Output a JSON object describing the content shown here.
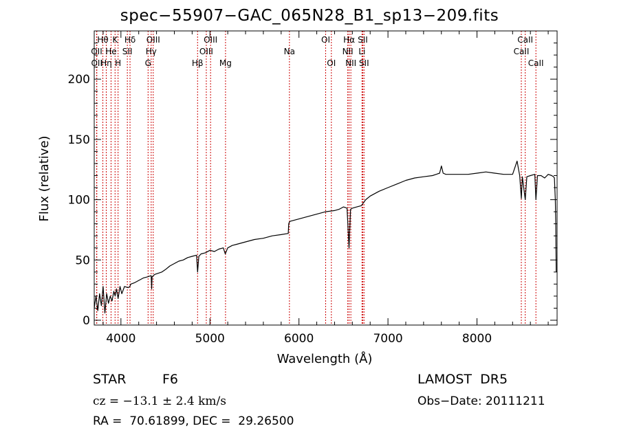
{
  "chart_data": {
    "type": "line",
    "title": "spec−55907−GAC_065N28_B1_sp13−209.fits",
    "xlabel": "Wavelength (Å)",
    "ylabel": "Flux (relative)",
    "xlim": [
      3700,
      8900
    ],
    "ylim": [
      -4,
      240
    ],
    "xticks": [
      4000,
      5000,
      6000,
      7000,
      8000
    ],
    "yticks": [
      0,
      50,
      100,
      150,
      200
    ],
    "grid": false,
    "colors": {
      "spectrum": "#000000",
      "lines": "#cc0000"
    },
    "series": [
      {
        "x": [
          3700,
          3720,
          3740,
          3760,
          3780,
          3800,
          3820,
          3840,
          3860,
          3880,
          3900,
          3920,
          3935,
          3950,
          3968,
          3990,
          4010,
          4040,
          4080,
          4101,
          4110,
          4150,
          4200,
          4250,
          4300,
          4340,
          4345,
          4350,
          4380,
          4420,
          4460,
          4500,
          4550,
          4600,
          4650,
          4700,
          4750,
          4800,
          4850,
          4861,
          4875,
          4900,
          4950,
          5000,
          5050,
          5100,
          5150,
          5172,
          5200,
          5250,
          5300,
          5400,
          5500,
          5600,
          5700,
          5800,
          5880,
          5885,
          5890,
          5900,
          6000,
          6100,
          6200,
          6300,
          6400,
          6450,
          6500,
          6540,
          6563,
          6580,
          6600,
          6650,
          6700,
          6750,
          6800,
          6900,
          7000,
          7100,
          7200,
          7300,
          7400,
          7500,
          7580,
          7600,
          7620,
          7650,
          7700,
          7800,
          7900,
          8000,
          8100,
          8200,
          8300,
          8400,
          8450,
          8480,
          8498,
          8510,
          8542,
          8560,
          8600,
          8650,
          8662,
          8680,
          8720,
          8760,
          8800,
          8840,
          8860,
          8870,
          8880,
          8885,
          8890
        ],
        "y": [
          10,
          20,
          8,
          22,
          12,
          28,
          6,
          22,
          14,
          20,
          16,
          24,
          20,
          26,
          18,
          28,
          22,
          28,
          27,
          28,
          30,
          31,
          33,
          35,
          36,
          37,
          26,
          36,
          38,
          39,
          40,
          42,
          45,
          47,
          49,
          50,
          52,
          53,
          54,
          40,
          53,
          55,
          56,
          58,
          57,
          59,
          60,
          55,
          60,
          62,
          63,
          65,
          67,
          68,
          70,
          71,
          72,
          80,
          81,
          82,
          84,
          86,
          88,
          90,
          91,
          92,
          94,
          93,
          60,
          92,
          93,
          94,
          95,
          100,
          103,
          107,
          110,
          113,
          116,
          118,
          119,
          120,
          122,
          128,
          122,
          121,
          121,
          121,
          121,
          122,
          123,
          122,
          121,
          121,
          132,
          120,
          101,
          119,
          100,
          119,
          120,
          121,
          100,
          120,
          120,
          118,
          121,
          120,
          119,
          118,
          100,
          80,
          40
        ]
      }
    ],
    "line_ids": [
      {
        "label": "Hθ",
        "wavelength": 3797,
        "row": 1
      },
      {
        "label": "OII",
        "wavelength": 3727,
        "row": 2
      },
      {
        "label": "OII",
        "wavelength": 3729,
        "row": 3
      },
      {
        "label": "He",
        "wavelength": 3889,
        "row": 2
      },
      {
        "label": "Hη",
        "wavelength": 3835,
        "row": 3
      },
      {
        "label": "K",
        "wavelength": 3934,
        "row": 1
      },
      {
        "label": "H",
        "wavelength": 3968,
        "row": 3
      },
      {
        "label": "SII",
        "wavelength": 4072,
        "row": 2
      },
      {
        "label": "Hδ",
        "wavelength": 4102,
        "row": 1
      },
      {
        "label": "OIII",
        "wavelength": 4363,
        "row": 1
      },
      {
        "label": "Hγ",
        "wavelength": 4340,
        "row": 2
      },
      {
        "label": "G",
        "wavelength": 4305,
        "row": 3
      },
      {
        "label": "OIII",
        "wavelength": 5007,
        "row": 1
      },
      {
        "label": "OIII",
        "wavelength": 4959,
        "row": 2
      },
      {
        "label": "Hβ",
        "wavelength": 4861,
        "row": 3
      },
      {
        "label": "Mg",
        "wavelength": 5175,
        "row": 3
      },
      {
        "label": "Na",
        "wavelength": 5893,
        "row": 2
      },
      {
        "label": "OI",
        "wavelength": 6300,
        "row": 1
      },
      {
        "label": "OI",
        "wavelength": 6364,
        "row": 3
      },
      {
        "label": "Hα",
        "wavelength": 6563,
        "row": 1
      },
      {
        "label": "NII",
        "wavelength": 6548,
        "row": 2
      },
      {
        "label": "NII",
        "wavelength": 6583,
        "row": 3
      },
      {
        "label": "SII",
        "wavelength": 6717,
        "row": 1
      },
      {
        "label": "Li",
        "wavelength": 6708,
        "row": 2
      },
      {
        "label": "SII",
        "wavelength": 6731,
        "row": 3
      },
      {
        "label": "CaII",
        "wavelength": 8542,
        "row": 1
      },
      {
        "label": "CaII",
        "wavelength": 8498,
        "row": 2
      },
      {
        "label": "CaII",
        "wavelength": 8662,
        "row": 3
      }
    ]
  },
  "footer": {
    "class_label": "STAR",
    "subclass": "F6",
    "survey": "LAMOST  DR5",
    "redshift": "cz = −13.1 ± 2.4 km/s",
    "obs_date": "Obs−Date: 20111211",
    "coords": "RA =  70.61899, DEC =  29.26500"
  }
}
